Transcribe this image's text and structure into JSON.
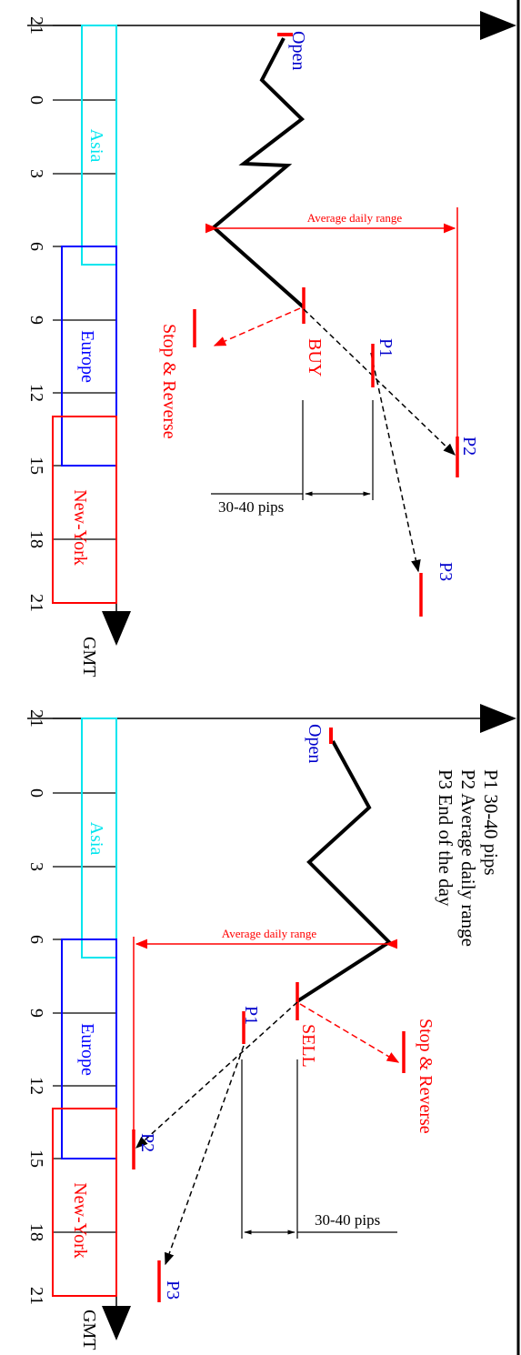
{
  "time_axis_label": "GMT",
  "hour_ticks": [
    "21",
    "0",
    "3",
    "6",
    "9",
    "12",
    "15",
    "18",
    "21"
  ],
  "sessions": [
    {
      "name": "Asia",
      "color": "#00e5ee"
    },
    {
      "name": "Europe",
      "color": "#0000ff"
    },
    {
      "name": "New-York",
      "color": "#ff0000"
    }
  ],
  "top_panel": {
    "open_label": "Open",
    "entry_label": "BUY",
    "stop_label": "Stop & Reverse",
    "range_label": "Average daily range",
    "pips_label": "30-40 pips",
    "targets": [
      "P1",
      "P2",
      "P3"
    ]
  },
  "bottom_panel": {
    "open_label": "Open",
    "entry_label": "SELL",
    "stop_label": "Stop & Reverse",
    "range_label": "Average daily range",
    "pips_label": "30-40 pips",
    "targets": [
      "P1",
      "P2",
      "P3"
    ]
  },
  "legend": [
    "P1  30-40 pips",
    "P2  Average daily range",
    "P3  End of the day"
  ],
  "colors": {
    "label_blue": "#0000cc",
    "accent_red": "#ff0000",
    "line": "#000000"
  }
}
